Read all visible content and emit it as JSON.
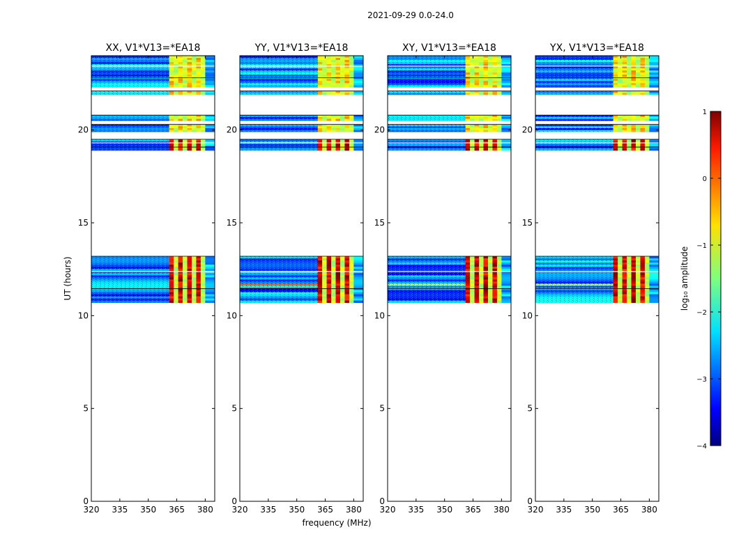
{
  "chart_data": {
    "type": "heatmap",
    "suptitle": "2021-09-29 0.0-24.0",
    "xlabel": "frequency (MHz)",
    "ylabel": "UT (hours)",
    "xlim": [
      320,
      385
    ],
    "ylim": [
      0,
      24
    ],
    "xticks": [
      320,
      335,
      350,
      365,
      380
    ],
    "yticks": [
      0,
      5,
      10,
      15,
      20
    ],
    "panels": [
      {
        "title": "XX, V1*V13=*EA18",
        "strong_band_mhz": [
          361,
          380
        ]
      },
      {
        "title": "YY, V1*V13=*EA18",
        "strong_band_mhz": [
          361,
          380
        ]
      },
      {
        "title": "XY, V1*V13=*EA18",
        "strong_band_mhz": [
          361,
          380
        ]
      },
      {
        "title": "YX, V1*V13=*EA18",
        "strong_band_mhz": [
          361,
          380
        ]
      }
    ],
    "data_time_blocks_hours": [
      [
        10.7,
        13.2
      ],
      [
        18.9,
        19.5
      ],
      [
        19.9,
        20.3
      ],
      [
        20.5,
        20.8
      ],
      [
        21.9,
        22.1
      ],
      [
        22.3,
        24.0
      ]
    ],
    "colorbar": {
      "label": "log₁₀ amplitude",
      "range": [
        -4,
        1
      ],
      "ticks": [
        1,
        0,
        -1,
        -2,
        -3,
        -4
      ],
      "tick_labels": [
        "1",
        "0",
        "−1",
        "−2",
        "−3",
        "−4"
      ],
      "colormap": "jet"
    }
  }
}
